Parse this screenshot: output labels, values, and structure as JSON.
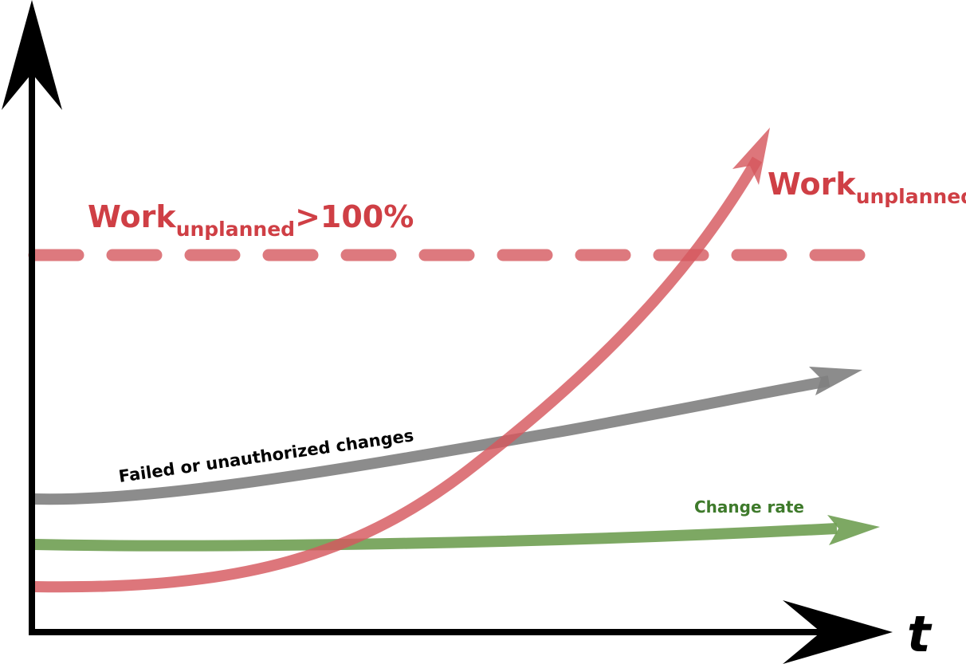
{
  "threshold_label": {
    "main": "Work",
    "sub": "unplanned",
    "suffix": ">100%"
  },
  "unplanned_curve_label": {
    "main": "Work",
    "sub": "unplanned"
  },
  "failed_changes_label": "Failed or unauthorized changes",
  "change_rate_label": "Change rate",
  "x_axis_label": "t",
  "colors": {
    "red": "#cf3f45",
    "gray": "#7f7f7f",
    "green": "#6f9e52",
    "axis": "#000000",
    "green_text": "#3e7a2b"
  }
}
